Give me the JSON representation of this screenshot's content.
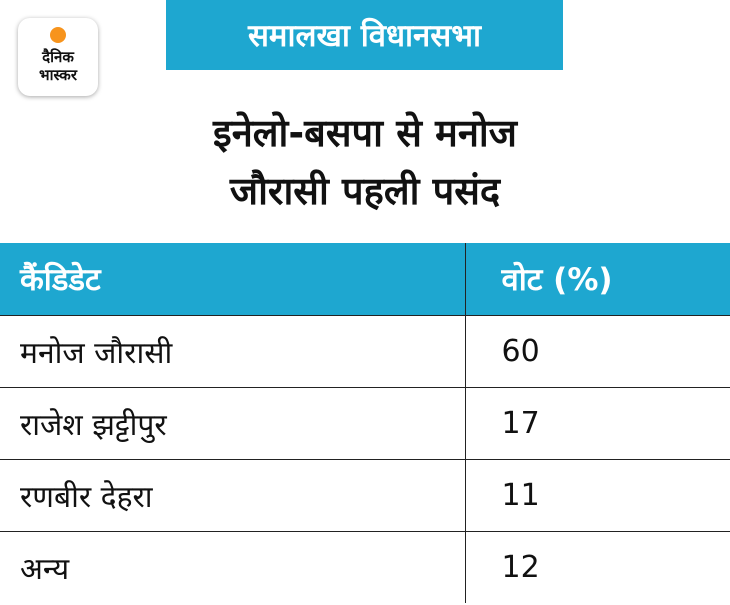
{
  "logo": {
    "line1": "दैनिक",
    "line2": "भास्कर",
    "sun_color": "#f7941d"
  },
  "banner": {
    "text": "समालखा विधानसभा",
    "color": "#1ea7d0"
  },
  "title": {
    "line1": "इनेलो-बसपा से मनोज",
    "line2": "जौरासी पहली पसंद"
  },
  "chart_data": {
    "type": "table",
    "columns": [
      "कैंडिडेट",
      "वोट (%)"
    ],
    "rows": [
      {
        "candidate": "मनोज जौरासी",
        "votes": "60"
      },
      {
        "candidate": "राजेश झट्टीपुर",
        "votes": "17"
      },
      {
        "candidate": "रणबीर देहरा",
        "votes": "11"
      },
      {
        "candidate": "अन्य",
        "votes": "12"
      }
    ]
  }
}
